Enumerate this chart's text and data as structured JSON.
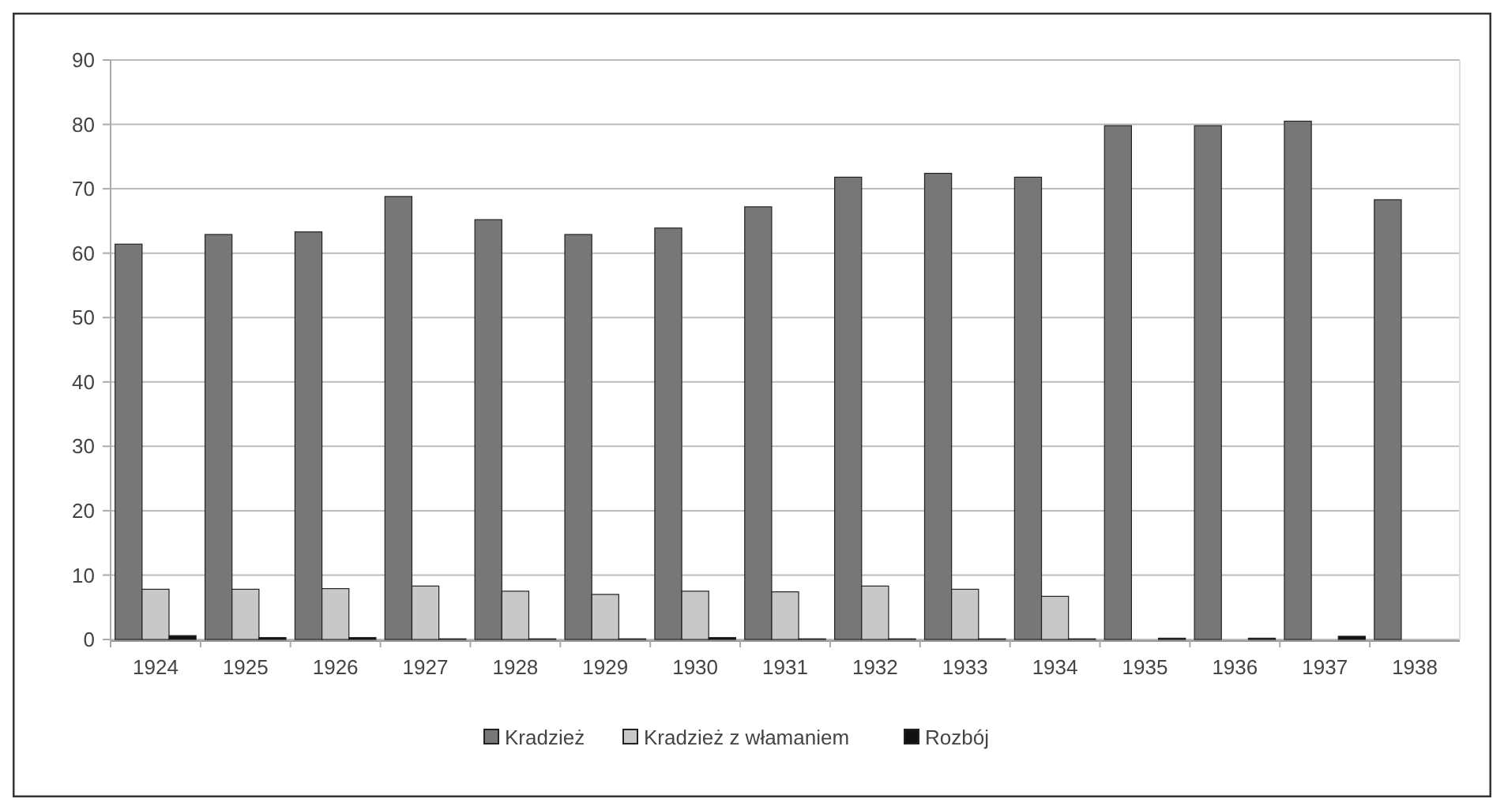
{
  "chart_data": {
    "type": "bar",
    "categories": [
      "1924",
      "1925",
      "1926",
      "1927",
      "1928",
      "1929",
      "1930",
      "1931",
      "1932",
      "1933",
      "1934",
      "1935",
      "1936",
      "1937",
      "1938"
    ],
    "series": [
      {
        "name": "Kradzież",
        "color": "#777777",
        "values": [
          61.4,
          62.9,
          63.3,
          68.8,
          65.2,
          62.9,
          63.9,
          67.2,
          71.8,
          72.4,
          71.8,
          79.8,
          79.8,
          80.5,
          68.3
        ]
      },
      {
        "name": "Kradzież z włamaniem",
        "color": "#c8c8c8",
        "values": [
          7.8,
          7.8,
          7.9,
          8.3,
          7.5,
          7.0,
          7.5,
          7.4,
          8.3,
          7.8,
          6.7,
          0,
          0,
          0,
          0
        ]
      },
      {
        "name": "Rozbój",
        "color": "#111111",
        "values": [
          0.6,
          0.3,
          0.3,
          0.1,
          0.1,
          0.1,
          0.3,
          0.1,
          0.1,
          0.1,
          0.1,
          0.2,
          0.2,
          0.5,
          0
        ]
      }
    ],
    "ylim": [
      0,
      90
    ],
    "yticks": [
      0,
      10,
      20,
      30,
      40,
      50,
      60,
      70,
      80,
      90
    ],
    "grid": "y",
    "legend": "bottom"
  }
}
